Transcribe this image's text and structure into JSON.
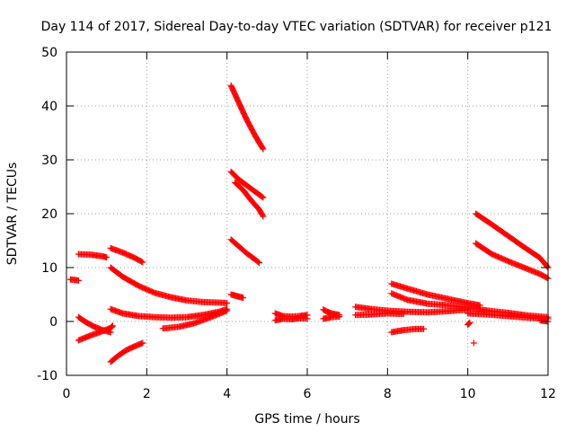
{
  "chart_data": {
    "type": "scatter",
    "title": "Day 114 of 2017, Sidereal Day-to-day VTEC variation (SDTVAR) for receiver p121",
    "xlabel": "GPS time / hours",
    "ylabel": "SDTVAR / TECUs",
    "xlim": [
      0,
      12
    ],
    "ylim": [
      -10,
      50
    ],
    "xticks": [
      0,
      2,
      4,
      6,
      8,
      10,
      12
    ],
    "yticks": [
      -10,
      0,
      10,
      20,
      30,
      40,
      50
    ],
    "grid": true,
    "marker": "+",
    "color": "#ff0000",
    "series": [
      {
        "points": [
          [
            0.1,
            7.8
          ],
          [
            0.3,
            7.6
          ]
        ]
      },
      {
        "points": [
          [
            0.3,
            12.5
          ],
          [
            0.6,
            12.4
          ],
          [
            0.9,
            12.1
          ],
          [
            1.0,
            11.9
          ]
        ]
      },
      {
        "points": [
          [
            0.3,
            0.8
          ],
          [
            0.5,
            -0.2
          ],
          [
            0.7,
            -1.0
          ],
          [
            0.9,
            -1.6
          ],
          [
            1.1,
            -2.0
          ]
        ]
      },
      {
        "points": [
          [
            0.3,
            -3.5
          ],
          [
            0.6,
            -2.6
          ],
          [
            0.9,
            -1.8
          ],
          [
            1.1,
            -1.2
          ],
          [
            1.15,
            -0.8
          ]
        ]
      },
      {
        "points": [
          [
            1.1,
            13.6
          ],
          [
            1.4,
            12.8
          ],
          [
            1.7,
            11.8
          ],
          [
            1.9,
            11.0
          ]
        ]
      },
      {
        "points": [
          [
            1.1,
            10.0
          ],
          [
            1.4,
            8.3
          ],
          [
            1.8,
            6.6
          ],
          [
            2.2,
            5.3
          ],
          [
            2.6,
            4.5
          ],
          [
            3.0,
            3.9
          ],
          [
            3.4,
            3.6
          ],
          [
            3.8,
            3.5
          ],
          [
            4.0,
            3.4
          ]
        ]
      },
      {
        "points": [
          [
            1.1,
            2.3
          ],
          [
            1.4,
            1.5
          ],
          [
            1.8,
            1.0
          ],
          [
            2.2,
            0.8
          ],
          [
            2.6,
            0.7
          ],
          [
            3.0,
            0.8
          ],
          [
            3.4,
            1.2
          ],
          [
            3.8,
            1.8
          ],
          [
            4.0,
            2.3
          ]
        ]
      },
      {
        "points": [
          [
            1.1,
            -7.5
          ],
          [
            1.3,
            -6.3
          ],
          [
            1.5,
            -5.3
          ],
          [
            1.7,
            -4.6
          ],
          [
            1.9,
            -4.0
          ]
        ]
      },
      {
        "points": [
          [
            2.4,
            -1.3
          ],
          [
            2.8,
            -1.0
          ],
          [
            3.2,
            -0.3
          ],
          [
            3.6,
            0.8
          ],
          [
            4.0,
            2.0
          ]
        ]
      },
      {
        "points": [
          [
            4.1,
            43.8
          ],
          [
            4.3,
            40.5
          ],
          [
            4.5,
            37.3
          ],
          [
            4.7,
            34.5
          ],
          [
            4.9,
            32.0
          ]
        ]
      },
      {
        "points": [
          [
            4.1,
            27.8
          ],
          [
            4.3,
            26.3
          ],
          [
            4.5,
            25.2
          ],
          [
            4.7,
            24.1
          ],
          [
            4.9,
            23.0
          ]
        ]
      },
      {
        "points": [
          [
            4.2,
            25.8
          ],
          [
            4.4,
            24.4
          ],
          [
            4.6,
            22.5
          ],
          [
            4.8,
            20.8
          ],
          [
            4.9,
            19.5
          ]
        ]
      },
      {
        "points": [
          [
            4.1,
            15.2
          ],
          [
            4.3,
            13.9
          ],
          [
            4.5,
            12.6
          ],
          [
            4.7,
            11.5
          ],
          [
            4.8,
            10.9
          ]
        ]
      },
      {
        "points": [
          [
            4.1,
            5.0
          ],
          [
            4.2,
            4.8
          ],
          [
            4.3,
            4.6
          ],
          [
            4.4,
            4.4
          ]
        ]
      },
      {
        "points": [
          [
            5.2,
            1.5
          ],
          [
            5.4,
            1.0
          ],
          [
            5.6,
            0.9
          ],
          [
            5.8,
            1.0
          ],
          [
            6.0,
            1.2
          ]
        ]
      },
      {
        "points": [
          [
            5.2,
            0.2
          ],
          [
            5.4,
            0.5
          ],
          [
            5.6,
            0.4
          ],
          [
            5.8,
            0.6
          ],
          [
            6.0,
            0.5
          ]
        ]
      },
      {
        "points": [
          [
            6.4,
            2.2
          ],
          [
            6.5,
            1.8
          ],
          [
            6.6,
            1.5
          ],
          [
            6.8,
            1.2
          ]
        ]
      },
      {
        "points": [
          [
            6.4,
            0.5
          ],
          [
            6.6,
            0.8
          ],
          [
            6.8,
            0.9
          ]
        ]
      },
      {
        "points": [
          [
            7.2,
            2.7
          ],
          [
            7.6,
            2.3
          ],
          [
            8.0,
            2.0
          ],
          [
            8.5,
            1.8
          ],
          [
            9.0,
            1.7
          ],
          [
            9.5,
            1.9
          ],
          [
            10.0,
            2.2
          ]
        ]
      },
      {
        "points": [
          [
            7.2,
            1.2
          ],
          [
            7.6,
            1.3
          ],
          [
            8.0,
            1.5
          ],
          [
            8.4,
            1.4
          ]
        ]
      },
      {
        "points": [
          [
            8.1,
            7.0
          ],
          [
            8.5,
            6.1
          ],
          [
            9.0,
            5.0
          ],
          [
            9.5,
            4.2
          ],
          [
            10.0,
            3.4
          ],
          [
            10.3,
            3.0
          ]
        ]
      },
      {
        "points": [
          [
            8.1,
            5.2
          ],
          [
            8.5,
            4.0
          ],
          [
            9.0,
            3.3
          ],
          [
            9.5,
            3.0
          ],
          [
            10.0,
            2.6
          ],
          [
            10.5,
            2.0
          ],
          [
            11.0,
            1.6
          ],
          [
            11.5,
            1.1
          ],
          [
            12.0,
            0.8
          ]
        ]
      },
      {
        "points": [
          [
            8.1,
            -2.0
          ],
          [
            8.4,
            -1.6
          ],
          [
            8.7,
            -1.4
          ],
          [
            8.9,
            -1.4
          ]
        ]
      },
      {
        "points": [
          [
            10.0,
            1.5
          ],
          [
            10.5,
            1.3
          ],
          [
            11.0,
            1.0
          ],
          [
            11.5,
            0.7
          ],
          [
            12.0,
            0.5
          ]
        ]
      },
      {
        "points": [
          [
            10.2,
            20.0
          ],
          [
            10.6,
            18.0
          ],
          [
            11.0,
            15.9
          ],
          [
            11.4,
            13.8
          ],
          [
            11.8,
            11.8
          ],
          [
            12.0,
            10.0
          ]
        ]
      },
      {
        "points": [
          [
            10.2,
            14.5
          ],
          [
            10.6,
            12.5
          ],
          [
            11.0,
            11.2
          ],
          [
            11.4,
            10.0
          ],
          [
            11.8,
            8.8
          ],
          [
            12.0,
            8.0
          ]
        ]
      },
      {
        "points": [
          [
            10.0,
            -0.6
          ],
          [
            10.05,
            -0.2
          ]
        ]
      },
      {
        "points": [
          [
            10.15,
            -4.0
          ]
        ]
      },
      {
        "points": [
          [
            11.8,
            0.2
          ],
          [
            12.0,
            0.0
          ]
        ]
      }
    ]
  }
}
